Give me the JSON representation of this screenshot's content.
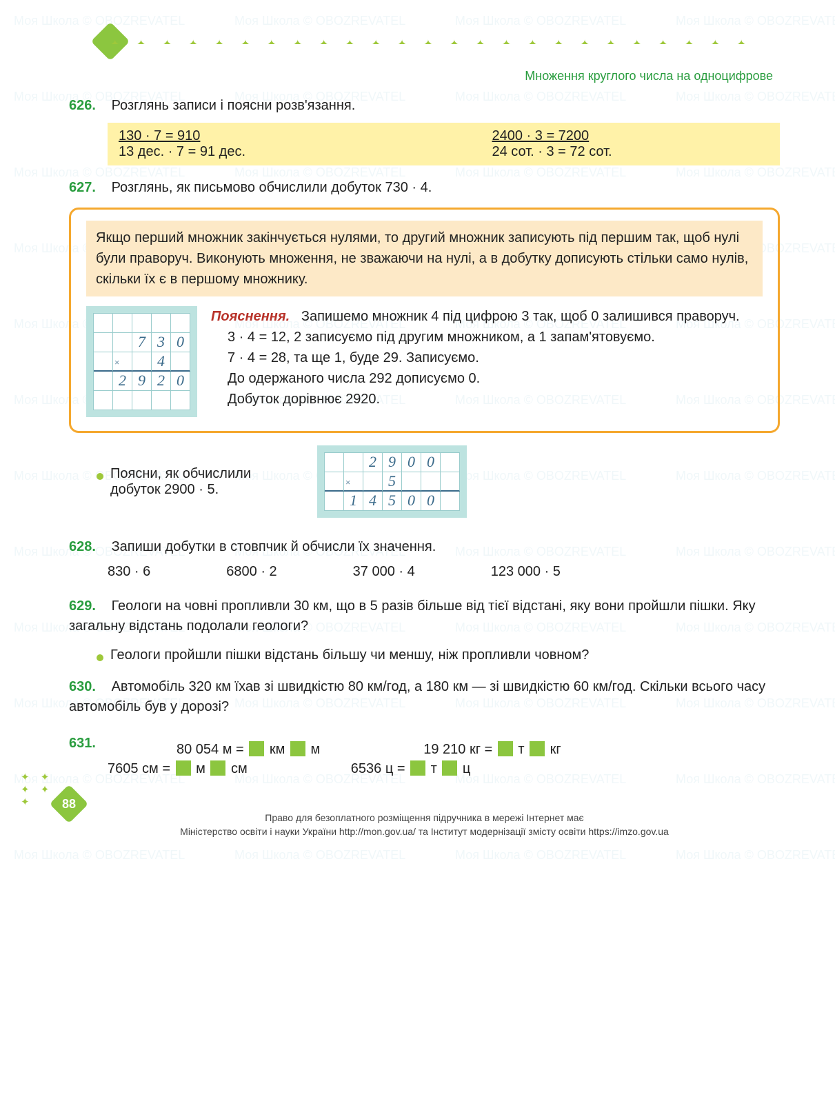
{
  "watermark_text": "Моя Школа © OBOZREVATEL",
  "section_title": "Множення круглого числа на одноцифрове",
  "plus_row": "✦ ✦ ✦ ✦ ✦ ✦ ✦ ✦ ✦ ✦ ✦ ✦ ✦ ✦ ✦ ✦ ✦ ✦ ✦ ✦ ✦ ✦ ✦ ✦ ✦ ✦ ✦ ✦ ✦ ✦ ✦ ✦ ✦ ✦ ✦ ✦ ✦ ✦ ✦ ✦ ✦ ✦ ✦ ✦ ✦ ✦",
  "colors": {
    "accent_green": "#8cc63f",
    "dark_green": "#2a9d3f",
    "highlight_yellow": "#fff2a8",
    "rule_border": "#f5a82e",
    "rule_bg": "#fde9c7",
    "grid_bg": "#bde3e0",
    "grid_line": "#9cc",
    "handwriting": "#3a6a8a",
    "explain_red": "#b8332a",
    "plus_green": "#9ec83a"
  },
  "ex626": {
    "num": "626.",
    "text": "Розглянь записи і поясни розв'язання.",
    "c1a": "130 · 7 = 910",
    "c1b": "13 дес. · 7 = 91 дес.",
    "c2a": "2400 · 3 = 7200",
    "c2b": "24 сот. · 3 = 72 сот."
  },
  "ex627": {
    "num": "627.",
    "text": "Розглянь, як письмово обчислили добуток 730 · 4.",
    "rule": "Якщо перший множник закінчується нулями, то другий множник записують під першим так, щоб нулі були праворуч. Виконують множення, не зважаючи на нулі, а в добутку дописують стільки само нулів, скільки їх є в першому множнику.",
    "explain_hdr": "Пояснення.",
    "explain_lines": [
      "Запишемо множник 4 під цифрою 3 так, щоб 0 залишився праворуч.",
      "3 · 4 = 12, 2 записуємо під другим множником, а 1 запам'ятовуємо.",
      "7 · 4 = 28, та ще 1, буде 29. Записуємо.",
      "До одержаного числа 292 дописуємо 0.",
      "Добуток дорівнює 2920."
    ],
    "grid1": {
      "rows": [
        [
          "",
          "",
          "",
          "",
          ""
        ],
        [
          "",
          "",
          "7",
          "3",
          "0"
        ],
        [
          "",
          "×",
          "",
          "4",
          ""
        ],
        [
          "",
          "2",
          "9",
          "2",
          "0"
        ],
        [
          "",
          "",
          "",
          "",
          ""
        ]
      ],
      "underline_row": 2
    },
    "bullet": "Поясни, як обчислили добуток 2900 · 5.",
    "grid2": {
      "rows": [
        [
          "",
          "",
          "2",
          "9",
          "0",
          "0",
          ""
        ],
        [
          "",
          "×",
          "",
          "5",
          "",
          "",
          ""
        ],
        [
          "",
          "1",
          "4",
          "5",
          "0",
          "0",
          ""
        ]
      ],
      "underline_row": 1
    }
  },
  "ex628": {
    "num": "628.",
    "text": "Запиши добутки в стовпчик й обчисли їх значення.",
    "probs": [
      "830 · 6",
      "6800 · 2",
      "37 000 · 4",
      "123 000 · 5"
    ]
  },
  "ex629": {
    "num": "629.",
    "text": "Геологи на човні пропливли 30 км, що в 5 разів більше від тієї відстані, яку вони пройшли пішки. Яку загальну відстань подолали геологи?",
    "bullet": "Геологи пройшли пішки відстань більшу чи меншу, ніж пропливли човном?"
  },
  "ex630": {
    "num": "630.",
    "text": "Автомобіль 320 км їхав зі швидкістю 80 км/год, а 180 км — зі швидкістю 60 км/год. Скільки всього часу автомобіль був у дорозі?"
  },
  "ex631": {
    "num": "631.",
    "rows": [
      {
        "left_a": "80 054 м =",
        "left_u1": "км",
        "left_u2": "м",
        "right_a": "19 210 кг =",
        "right_u1": "т",
        "right_u2": "кг"
      },
      {
        "left_a": "7605 см =",
        "left_u1": "м",
        "left_u2": "см",
        "right_a": "6536 ц =",
        "right_u1": "т",
        "right_u2": "ц"
      }
    ]
  },
  "page_number": "88",
  "footer": {
    "l1": "Право для безоплатного розміщення підручника в мережі Інтернет має",
    "l2": "Міністерство освіти і науки України http://mon.gov.ua/ та Інститут модернізації змісту освіти https://imzo.gov.ua"
  }
}
